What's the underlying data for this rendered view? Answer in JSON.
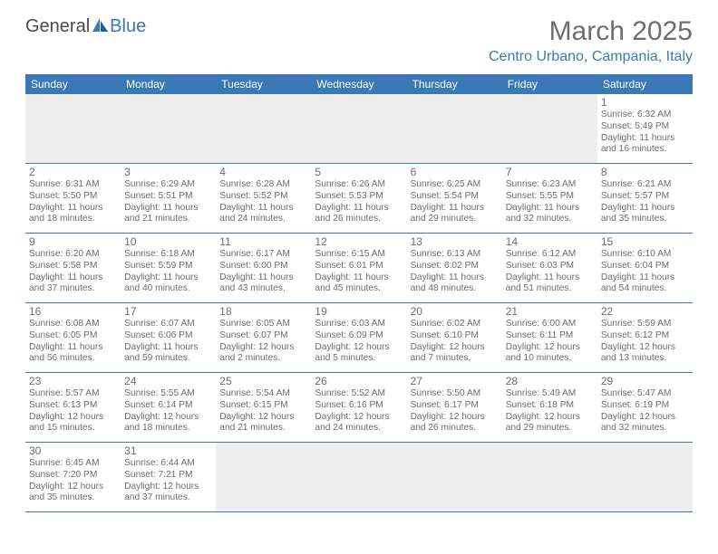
{
  "logo": {
    "part1": "General",
    "part2": "Blue"
  },
  "title": "March 2025",
  "location": "Centro Urbano, Campania, Italy",
  "colors": {
    "brand": "#3a79b6",
    "text_muted": "#6d6d6d",
    "blank_bg": "#eeeeee",
    "white": "#ffffff"
  },
  "typography": {
    "title_fontsize": 30,
    "location_fontsize": 16,
    "dow_fontsize": 12,
    "daynum_fontsize": 12,
    "body_fontsize": 10.2
  },
  "days_of_week": [
    "Sunday",
    "Monday",
    "Tuesday",
    "Wednesday",
    "Thursday",
    "Friday",
    "Saturday"
  ],
  "cells": [
    {
      "blank": true
    },
    {
      "blank": true
    },
    {
      "blank": true
    },
    {
      "blank": true
    },
    {
      "blank": true
    },
    {
      "blank": true
    },
    {
      "day": "1",
      "sunrise": "Sunrise: 6:32 AM",
      "sunset": "Sunset: 5:49 PM",
      "day1": "Daylight: 11 hours",
      "day2": "and 16 minutes."
    },
    {
      "day": "2",
      "sunrise": "Sunrise: 6:31 AM",
      "sunset": "Sunset: 5:50 PM",
      "day1": "Daylight: 11 hours",
      "day2": "and 18 minutes."
    },
    {
      "day": "3",
      "sunrise": "Sunrise: 6:29 AM",
      "sunset": "Sunset: 5:51 PM",
      "day1": "Daylight: 11 hours",
      "day2": "and 21 minutes."
    },
    {
      "day": "4",
      "sunrise": "Sunrise: 6:28 AM",
      "sunset": "Sunset: 5:52 PM",
      "day1": "Daylight: 11 hours",
      "day2": "and 24 minutes."
    },
    {
      "day": "5",
      "sunrise": "Sunrise: 6:26 AM",
      "sunset": "Sunset: 5:53 PM",
      "day1": "Daylight: 11 hours",
      "day2": "and 26 minutes."
    },
    {
      "day": "6",
      "sunrise": "Sunrise: 6:25 AM",
      "sunset": "Sunset: 5:54 PM",
      "day1": "Daylight: 11 hours",
      "day2": "and 29 minutes."
    },
    {
      "day": "7",
      "sunrise": "Sunrise: 6:23 AM",
      "sunset": "Sunset: 5:55 PM",
      "day1": "Daylight: 11 hours",
      "day2": "and 32 minutes."
    },
    {
      "day": "8",
      "sunrise": "Sunrise: 6:21 AM",
      "sunset": "Sunset: 5:57 PM",
      "day1": "Daylight: 11 hours",
      "day2": "and 35 minutes."
    },
    {
      "day": "9",
      "sunrise": "Sunrise: 6:20 AM",
      "sunset": "Sunset: 5:58 PM",
      "day1": "Daylight: 11 hours",
      "day2": "and 37 minutes."
    },
    {
      "day": "10",
      "sunrise": "Sunrise: 6:18 AM",
      "sunset": "Sunset: 5:59 PM",
      "day1": "Daylight: 11 hours",
      "day2": "and 40 minutes."
    },
    {
      "day": "11",
      "sunrise": "Sunrise: 6:17 AM",
      "sunset": "Sunset: 6:00 PM",
      "day1": "Daylight: 11 hours",
      "day2": "and 43 minutes."
    },
    {
      "day": "12",
      "sunrise": "Sunrise: 6:15 AM",
      "sunset": "Sunset: 6:01 PM",
      "day1": "Daylight: 11 hours",
      "day2": "and 45 minutes."
    },
    {
      "day": "13",
      "sunrise": "Sunrise: 6:13 AM",
      "sunset": "Sunset: 6:02 PM",
      "day1": "Daylight: 11 hours",
      "day2": "and 48 minutes."
    },
    {
      "day": "14",
      "sunrise": "Sunrise: 6:12 AM",
      "sunset": "Sunset: 6:03 PM",
      "day1": "Daylight: 11 hours",
      "day2": "and 51 minutes."
    },
    {
      "day": "15",
      "sunrise": "Sunrise: 6:10 AM",
      "sunset": "Sunset: 6:04 PM",
      "day1": "Daylight: 11 hours",
      "day2": "and 54 minutes."
    },
    {
      "day": "16",
      "sunrise": "Sunrise: 6:08 AM",
      "sunset": "Sunset: 6:05 PM",
      "day1": "Daylight: 11 hours",
      "day2": "and 56 minutes."
    },
    {
      "day": "17",
      "sunrise": "Sunrise: 6:07 AM",
      "sunset": "Sunset: 6:06 PM",
      "day1": "Daylight: 11 hours",
      "day2": "and 59 minutes."
    },
    {
      "day": "18",
      "sunrise": "Sunrise: 6:05 AM",
      "sunset": "Sunset: 6:07 PM",
      "day1": "Daylight: 12 hours",
      "day2": "and 2 minutes."
    },
    {
      "day": "19",
      "sunrise": "Sunrise: 6:03 AM",
      "sunset": "Sunset: 6:09 PM",
      "day1": "Daylight: 12 hours",
      "day2": "and 5 minutes."
    },
    {
      "day": "20",
      "sunrise": "Sunrise: 6:02 AM",
      "sunset": "Sunset: 6:10 PM",
      "day1": "Daylight: 12 hours",
      "day2": "and 7 minutes."
    },
    {
      "day": "21",
      "sunrise": "Sunrise: 6:00 AM",
      "sunset": "Sunset: 6:11 PM",
      "day1": "Daylight: 12 hours",
      "day2": "and 10 minutes."
    },
    {
      "day": "22",
      "sunrise": "Sunrise: 5:59 AM",
      "sunset": "Sunset: 6:12 PM",
      "day1": "Daylight: 12 hours",
      "day2": "and 13 minutes."
    },
    {
      "day": "23",
      "sunrise": "Sunrise: 5:57 AM",
      "sunset": "Sunset: 6:13 PM",
      "day1": "Daylight: 12 hours",
      "day2": "and 15 minutes."
    },
    {
      "day": "24",
      "sunrise": "Sunrise: 5:55 AM",
      "sunset": "Sunset: 6:14 PM",
      "day1": "Daylight: 12 hours",
      "day2": "and 18 minutes."
    },
    {
      "day": "25",
      "sunrise": "Sunrise: 5:54 AM",
      "sunset": "Sunset: 6:15 PM",
      "day1": "Daylight: 12 hours",
      "day2": "and 21 minutes."
    },
    {
      "day": "26",
      "sunrise": "Sunrise: 5:52 AM",
      "sunset": "Sunset: 6:16 PM",
      "day1": "Daylight: 12 hours",
      "day2": "and 24 minutes."
    },
    {
      "day": "27",
      "sunrise": "Sunrise: 5:50 AM",
      "sunset": "Sunset: 6:17 PM",
      "day1": "Daylight: 12 hours",
      "day2": "and 26 minutes."
    },
    {
      "day": "28",
      "sunrise": "Sunrise: 5:49 AM",
      "sunset": "Sunset: 6:18 PM",
      "day1": "Daylight: 12 hours",
      "day2": "and 29 minutes."
    },
    {
      "day": "29",
      "sunrise": "Sunrise: 5:47 AM",
      "sunset": "Sunset: 6:19 PM",
      "day1": "Daylight: 12 hours",
      "day2": "and 32 minutes."
    },
    {
      "day": "30",
      "sunrise": "Sunrise: 6:45 AM",
      "sunset": "Sunset: 7:20 PM",
      "day1": "Daylight: 12 hours",
      "day2": "and 35 minutes."
    },
    {
      "day": "31",
      "sunrise": "Sunrise: 6:44 AM",
      "sunset": "Sunset: 7:21 PM",
      "day1": "Daylight: 12 hours",
      "day2": "and 37 minutes."
    },
    {
      "blank": true
    },
    {
      "blank": true
    },
    {
      "blank": true
    },
    {
      "blank": true
    },
    {
      "blank": true
    }
  ]
}
